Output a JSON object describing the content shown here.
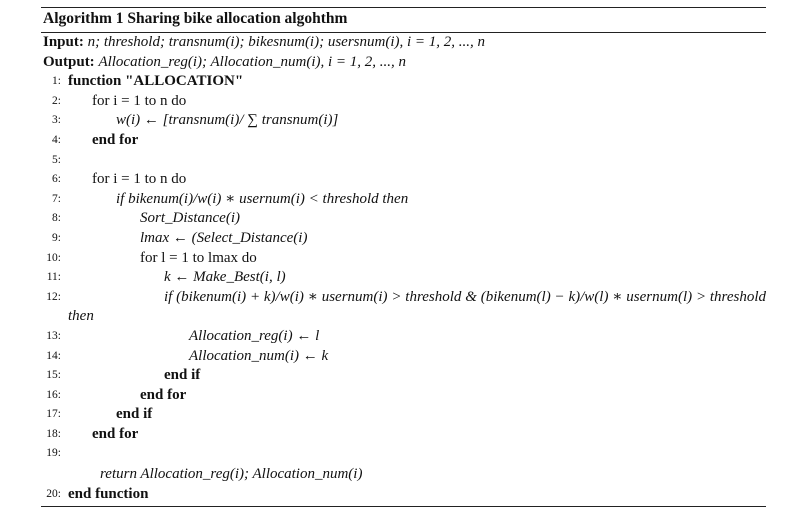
{
  "algorithm": {
    "caption": "Algorithm 1 Sharing bike allocation algohthm",
    "input_label": "Input:",
    "input_text": "n; threshold; transnum(i); bikesnum(i); usersnum(i), i = 1, 2, ..., n",
    "output_label": "Output:",
    "output_text": "Allocation_reg(i); Allocation_num(i), i = 1, 2, ..., n",
    "lines": [
      {
        "num": "1:",
        "text": "function \"ALLOCATION\""
      },
      {
        "num": "2:",
        "text": "for i = 1 to n do"
      },
      {
        "num": "3:",
        "text": "w(i) ← [transnum(i)/ ∑ transnum(i)]"
      },
      {
        "num": "4:",
        "text": "end for"
      },
      {
        "num": "5:",
        "text": ""
      },
      {
        "num": "6:",
        "text": "for i = 1 to n do"
      },
      {
        "num": "7:",
        "text": "if bikenum(i)/w(i) ∗ usernum(i) < threshold then"
      },
      {
        "num": "8:",
        "text": "Sort_Distance(i)"
      },
      {
        "num": "9:",
        "text": "lmax ← (Select_Distance(i)"
      },
      {
        "num": "10:",
        "text": "for l = 1 to lmax do"
      },
      {
        "num": "11:",
        "text": "k ← Make_Best(i, l)"
      },
      {
        "num": "12:",
        "text": "if (bikenum(i) + k)/w(i) ∗ usernum(i) > threshold & (bikenum(l) − k)/w(l) ∗ usernum(l) > threshold then"
      },
      {
        "num": "13:",
        "text": "Allocation_reg(i) ← l"
      },
      {
        "num": "14:",
        "text": "Allocation_num(i) ← k"
      },
      {
        "num": "15:",
        "text": "end if"
      },
      {
        "num": "16:",
        "text": "end for"
      },
      {
        "num": "17:",
        "text": "end if"
      },
      {
        "num": "18:",
        "text": "end for"
      },
      {
        "num": "19:",
        "text": ""
      },
      {
        "num": "",
        "text": "return Allocation_reg(i); Allocation_num(i)"
      },
      {
        "num": "20:",
        "text": "end function"
      }
    ]
  }
}
